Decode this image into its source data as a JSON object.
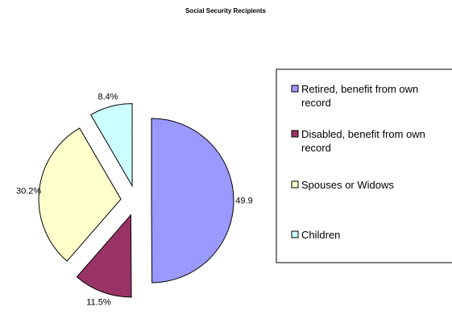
{
  "chart_data": {
    "type": "pie",
    "title": "Social Security Recipients",
    "exploded": true,
    "start_angle_deg": 0,
    "direction": "clockwise",
    "slices": [
      {
        "label": "Retired, benefit from own record",
        "value": 49.9,
        "display": "49.9",
        "color": "#9999ff"
      },
      {
        "label": "Disabled, benefit from own record",
        "value": 11.5,
        "display": "11.5%",
        "color": "#993366"
      },
      {
        "label": "Spouses or Widows",
        "value": 30.2,
        "display": "30.2%",
        "color": "#ffffcc"
      },
      {
        "label": "Children",
        "value": 8.4,
        "display": "8.4%",
        "color": "#ccffff"
      }
    ],
    "legend": {
      "position": "right",
      "entries": [
        {
          "text_lines": [
            "Retired, benefit from own",
            "record"
          ],
          "color": "#9999ff"
        },
        {
          "text_lines": [
            "Disabled, benefit from own",
            "record"
          ],
          "color": "#993366"
        },
        {
          "text_lines": [
            "Spouses or Widows"
          ],
          "color": "#ffffcc"
        },
        {
          "text_lines": [
            "Children"
          ],
          "color": "#ccffff"
        }
      ]
    },
    "border_color": "#000000"
  }
}
